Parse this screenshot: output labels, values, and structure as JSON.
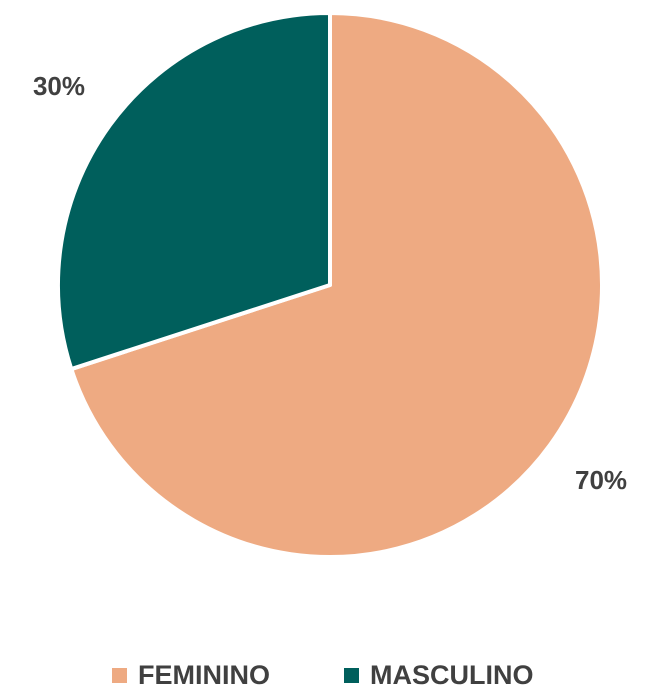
{
  "chart_data": {
    "type": "pie",
    "categories": [
      "FEMININO",
      "MASCULINO"
    ],
    "values": [
      70,
      30
    ],
    "value_labels": [
      "70%",
      "30%"
    ],
    "colors": [
      "#EEAA82",
      "#005F5C"
    ],
    "legend": "bottom"
  }
}
